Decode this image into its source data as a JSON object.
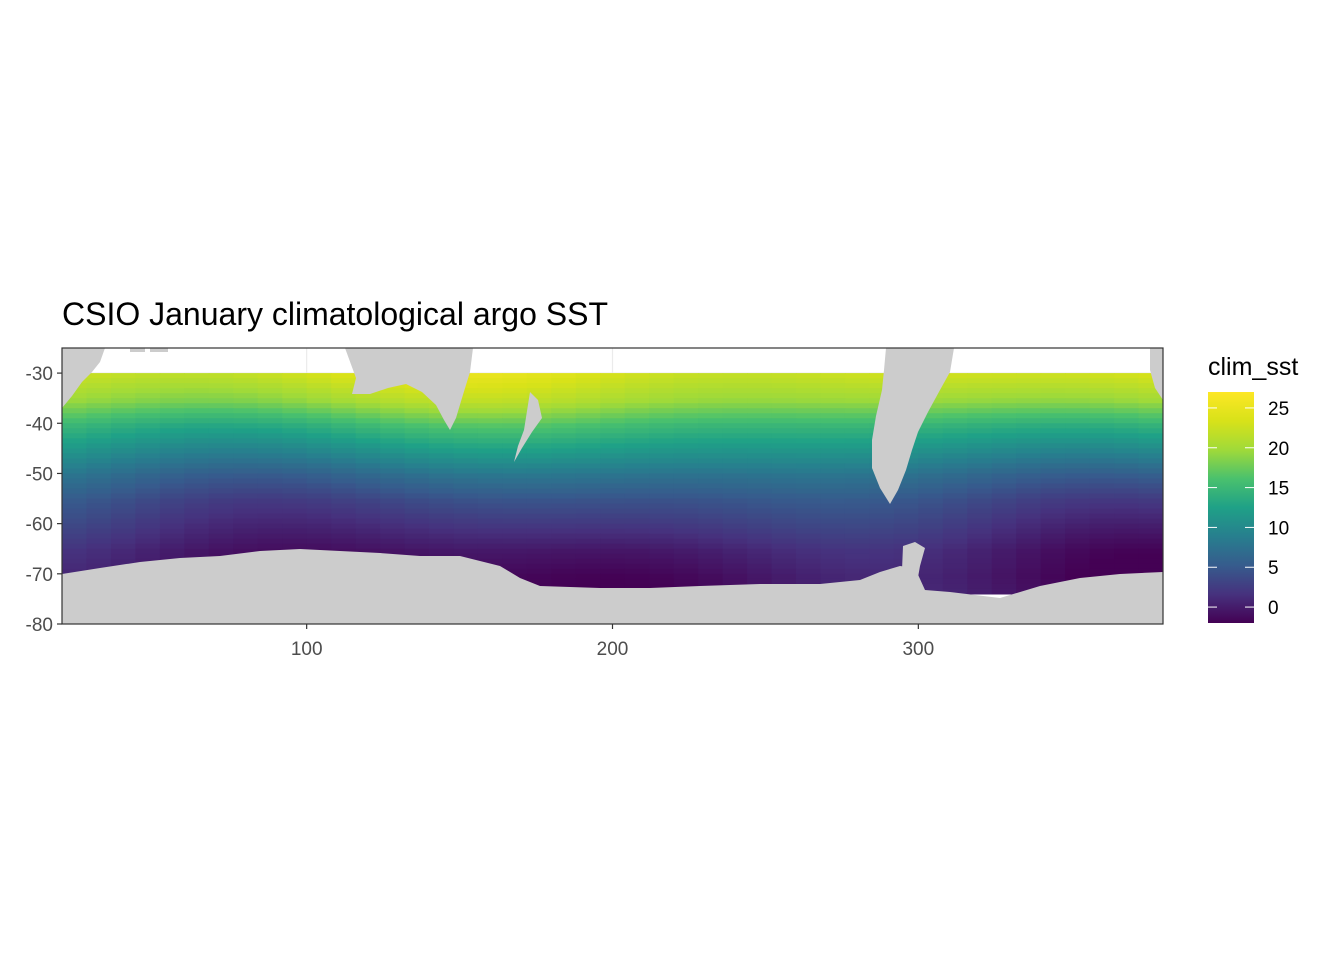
{
  "chart_data": {
    "type": "heatmap",
    "title": "CSIO January climatological argo SST",
    "xlabel": "",
    "ylabel": "",
    "xlim": [
      20,
      380
    ],
    "ylim": [
      -80,
      -25
    ],
    "x_ticks": [
      100,
      200,
      300
    ],
    "y_ticks": [
      -30,
      -40,
      -50,
      -60,
      -70,
      -80
    ],
    "grid": true,
    "fill_variable": "clim_sst",
    "colorscale": "viridis",
    "fill_range": [
      -2,
      27
    ],
    "legend": {
      "title": "clim_sst",
      "placement": "right",
      "breaks": [
        25,
        20,
        15,
        10,
        5,
        0
      ]
    },
    "land_color": "#cccccc",
    "sst_latitude_profile": [
      {
        "lat": -30,
        "sst": 23
      },
      {
        "lat": -35,
        "sst": 20
      },
      {
        "lat": -40,
        "sst": 15
      },
      {
        "lat": -45,
        "sst": 11
      },
      {
        "lat": -50,
        "sst": 7
      },
      {
        "lat": -55,
        "sst": 4
      },
      {
        "lat": -60,
        "sst": 2
      },
      {
        "lat": -65,
        "sst": 0
      },
      {
        "lat": -70,
        "sst": -1
      }
    ],
    "land_regions": [
      {
        "name": "Antarctica"
      },
      {
        "name": "Australia"
      },
      {
        "name": "New Zealand"
      },
      {
        "name": "South America"
      },
      {
        "name": "Africa"
      }
    ]
  }
}
